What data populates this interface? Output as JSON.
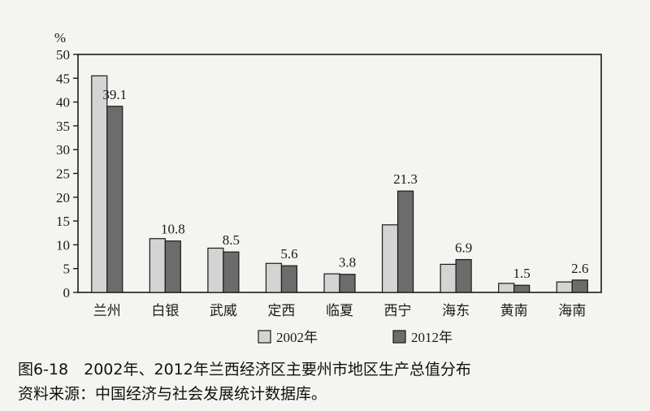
{
  "chart_data": {
    "type": "bar",
    "unit_label": "%",
    "categories": [
      "兰州",
      "白银",
      "武威",
      "定西",
      "临夏",
      "西宁",
      "海东",
      "黄南",
      "海南"
    ],
    "series": [
      {
        "name": "2002年",
        "color": "#d4d4d4",
        "values": [
          45.5,
          11.3,
          9.3,
          6.1,
          3.9,
          14.2,
          5.9,
          1.9,
          2.2
        ],
        "labels": [
          "",
          "",
          "",
          "",
          "",
          "",
          "",
          "",
          ""
        ]
      },
      {
        "name": "2012年",
        "color": "#6c6c6c",
        "values": [
          39.1,
          10.8,
          8.5,
          5.6,
          3.8,
          21.3,
          6.9,
          1.5,
          2.6
        ],
        "labels": [
          "39.1",
          "10.8",
          "8.5",
          "5.6",
          "3.8",
          "21.3",
          "6.9",
          "1.5",
          "2.6"
        ]
      }
    ],
    "ylim": [
      0,
      50
    ],
    "yticks": [
      0,
      5,
      10,
      15,
      20,
      25,
      30,
      35,
      40,
      45,
      50
    ],
    "grid": false,
    "legend_position": "bottom"
  },
  "caption": {
    "title": "图6-18　2002年、2012年兰西经济区主要州市地区生产总值分布",
    "source": "资料来源：中国经济与社会发展统计数据库。"
  }
}
